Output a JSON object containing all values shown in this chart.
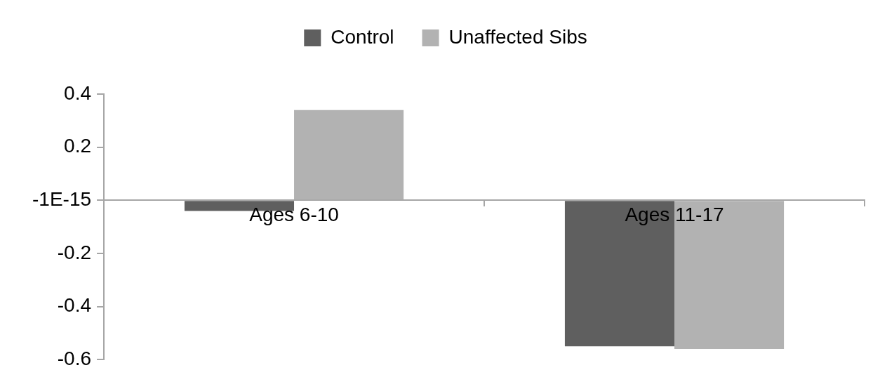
{
  "chart_data": {
    "type": "bar",
    "categories": [
      "Ages 6-10",
      "Ages 11-17"
    ],
    "series": [
      {
        "name": "Control",
        "color": "#5f5f5f",
        "values": [
          -0.04,
          -0.55
        ]
      },
      {
        "name": "Unaffected Sibs",
        "color": "#b2b2b2",
        "values": [
          0.34,
          -0.56
        ]
      }
    ],
    "ylim": [
      -0.6,
      0.4
    ],
    "yticks": [
      -0.6,
      -0.4,
      -0.2,
      {
        "value": 0,
        "label": "-1E-15"
      },
      0.2,
      0.4
    ],
    "legend": "top"
  }
}
